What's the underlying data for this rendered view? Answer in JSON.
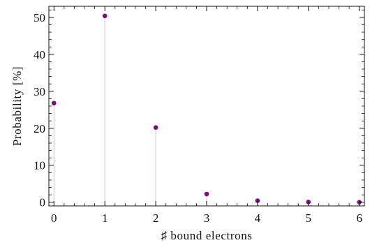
{
  "chart_data": {
    "type": "scatter",
    "style": "stem",
    "x": [
      0,
      1,
      2,
      3,
      4,
      5,
      6
    ],
    "y": [
      26.8,
      50.4,
      20.2,
      2.2,
      0.4,
      0.05,
      0.0
    ],
    "title": "",
    "xlabel": "♯ bound electrons",
    "ylabel": "Probability [%]",
    "xlim": [
      -0.1,
      6.1
    ],
    "ylim": [
      -1,
      53
    ],
    "xticks": [
      0,
      1,
      2,
      3,
      4,
      5,
      6
    ],
    "xtick_labels": [
      "0",
      "1",
      "2",
      "3",
      "4",
      "5",
      "6"
    ],
    "yticks": [
      0,
      10,
      20,
      30,
      40,
      50
    ],
    "ytick_labels": [
      "0",
      "10",
      "20",
      "30",
      "40",
      "50"
    ],
    "grid": false,
    "legend": "none",
    "colors": {
      "point": "#7a0f7a",
      "stem": "#ddc9dd",
      "frame": "#111111"
    }
  }
}
